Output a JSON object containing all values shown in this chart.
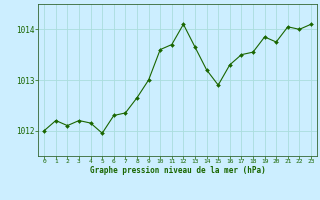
{
  "x": [
    0,
    1,
    2,
    3,
    4,
    5,
    6,
    7,
    8,
    9,
    10,
    11,
    12,
    13,
    14,
    15,
    16,
    17,
    18,
    19,
    20,
    21,
    22,
    23
  ],
  "y": [
    1012.0,
    1012.2,
    1012.1,
    1012.2,
    1012.15,
    1011.95,
    1012.3,
    1012.35,
    1012.65,
    1013.0,
    1013.6,
    1013.7,
    1014.1,
    1013.65,
    1013.2,
    1012.9,
    1013.3,
    1013.5,
    1013.55,
    1013.85,
    1013.75,
    1014.05,
    1014.0,
    1014.1
  ],
  "line_color": "#1a6600",
  "marker_color": "#1a6600",
  "bg_color": "#cceeff",
  "grid_color": "#aadddd",
  "xlabel": "Graphe pression niveau de la mer (hPa)",
  "xlabel_color": "#1a6600",
  "tick_color": "#1a6600",
  "ylim": [
    1011.5,
    1014.5
  ],
  "yticks": [
    1012,
    1013,
    1014
  ],
  "xlim": [
    -0.5,
    23.5
  ]
}
